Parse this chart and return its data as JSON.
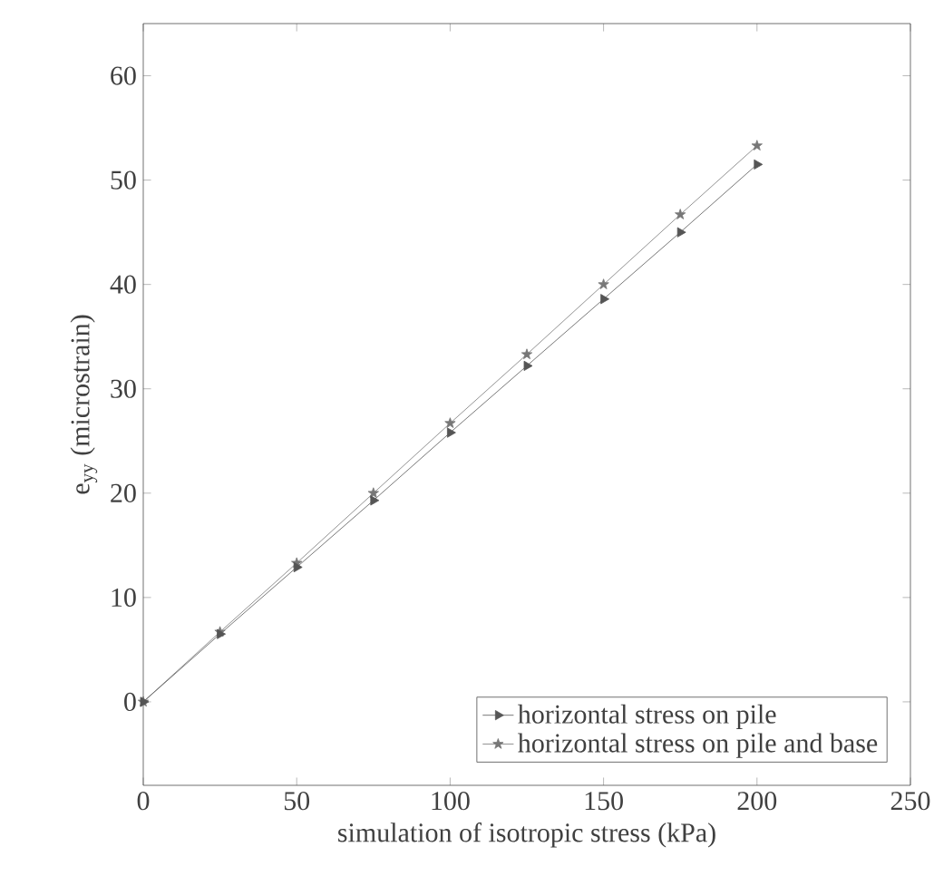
{
  "chart_data": {
    "type": "line",
    "xlabel": "simulation of isotropic stress (kPa)",
    "ylabel": "e$_{yy}$ (microstrain)",
    "x": [
      0,
      25,
      50,
      75,
      100,
      125,
      150,
      175,
      200
    ],
    "series": [
      {
        "name": "horizontal stress on pile",
        "color": "#555555",
        "marker": "triangle",
        "values": [
          0,
          6.5,
          12.9,
          19.3,
          25.8,
          32.2,
          38.6,
          45.0,
          51.5
        ]
      },
      {
        "name": "horizontal stress on pile and base",
        "color": "#777777",
        "marker": "star",
        "values": [
          0,
          6.7,
          13.3,
          20.0,
          26.7,
          33.3,
          40.0,
          46.7,
          53.3
        ]
      }
    ],
    "xlim": [
      0,
      250
    ],
    "ylim": [
      -8,
      65
    ],
    "xticks": [
      0,
      50,
      100,
      150,
      200,
      250
    ],
    "yticks": [
      0,
      10,
      20,
      30,
      40,
      50,
      60
    ],
    "legend": "bottom right",
    "line_style": "solid"
  }
}
